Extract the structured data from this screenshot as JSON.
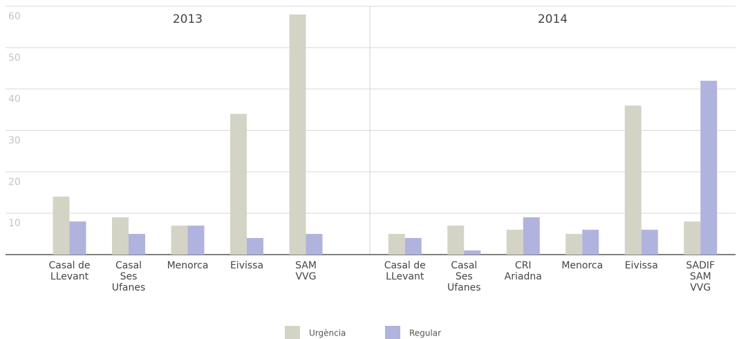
{
  "chart_data": {
    "type": "bar",
    "ylim": [
      0,
      60
    ],
    "yticks": [
      10,
      20,
      30,
      40,
      50,
      60
    ],
    "grid": true,
    "legend": [
      {
        "name": "Urgència",
        "color": "#d4d4c6"
      },
      {
        "name": "Regular",
        "color": "#b0b3dd"
      }
    ],
    "panels": [
      {
        "title": "2013",
        "categories": [
          [
            "Casal de",
            "LLevant"
          ],
          [
            "Casal",
            "Ses",
            "Ufanes"
          ],
          [
            "Menorca"
          ],
          [
            "Eivissa"
          ],
          [
            "SAM",
            "VVG"
          ]
        ],
        "series": [
          {
            "values": [
              14,
              9,
              7,
              34,
              58
            ]
          },
          {
            "values": [
              8,
              5,
              7,
              4,
              5
            ]
          }
        ]
      },
      {
        "title": "2014",
        "categories": [
          [
            "Casal de",
            "LLevant"
          ],
          [
            "Casal",
            "Ses",
            "Ufanes"
          ],
          [
            "CRI",
            "Ariadna"
          ],
          [
            "Menorca"
          ],
          [
            "Eivissa"
          ],
          [
            "SADIF",
            "SAM",
            "VVG"
          ]
        ],
        "series": [
          {
            "values": [
              5,
              7,
              6,
              5,
              36,
              8
            ]
          },
          {
            "values": [
              4,
              1,
              9,
              6,
              6,
              42
            ]
          }
        ]
      }
    ]
  }
}
